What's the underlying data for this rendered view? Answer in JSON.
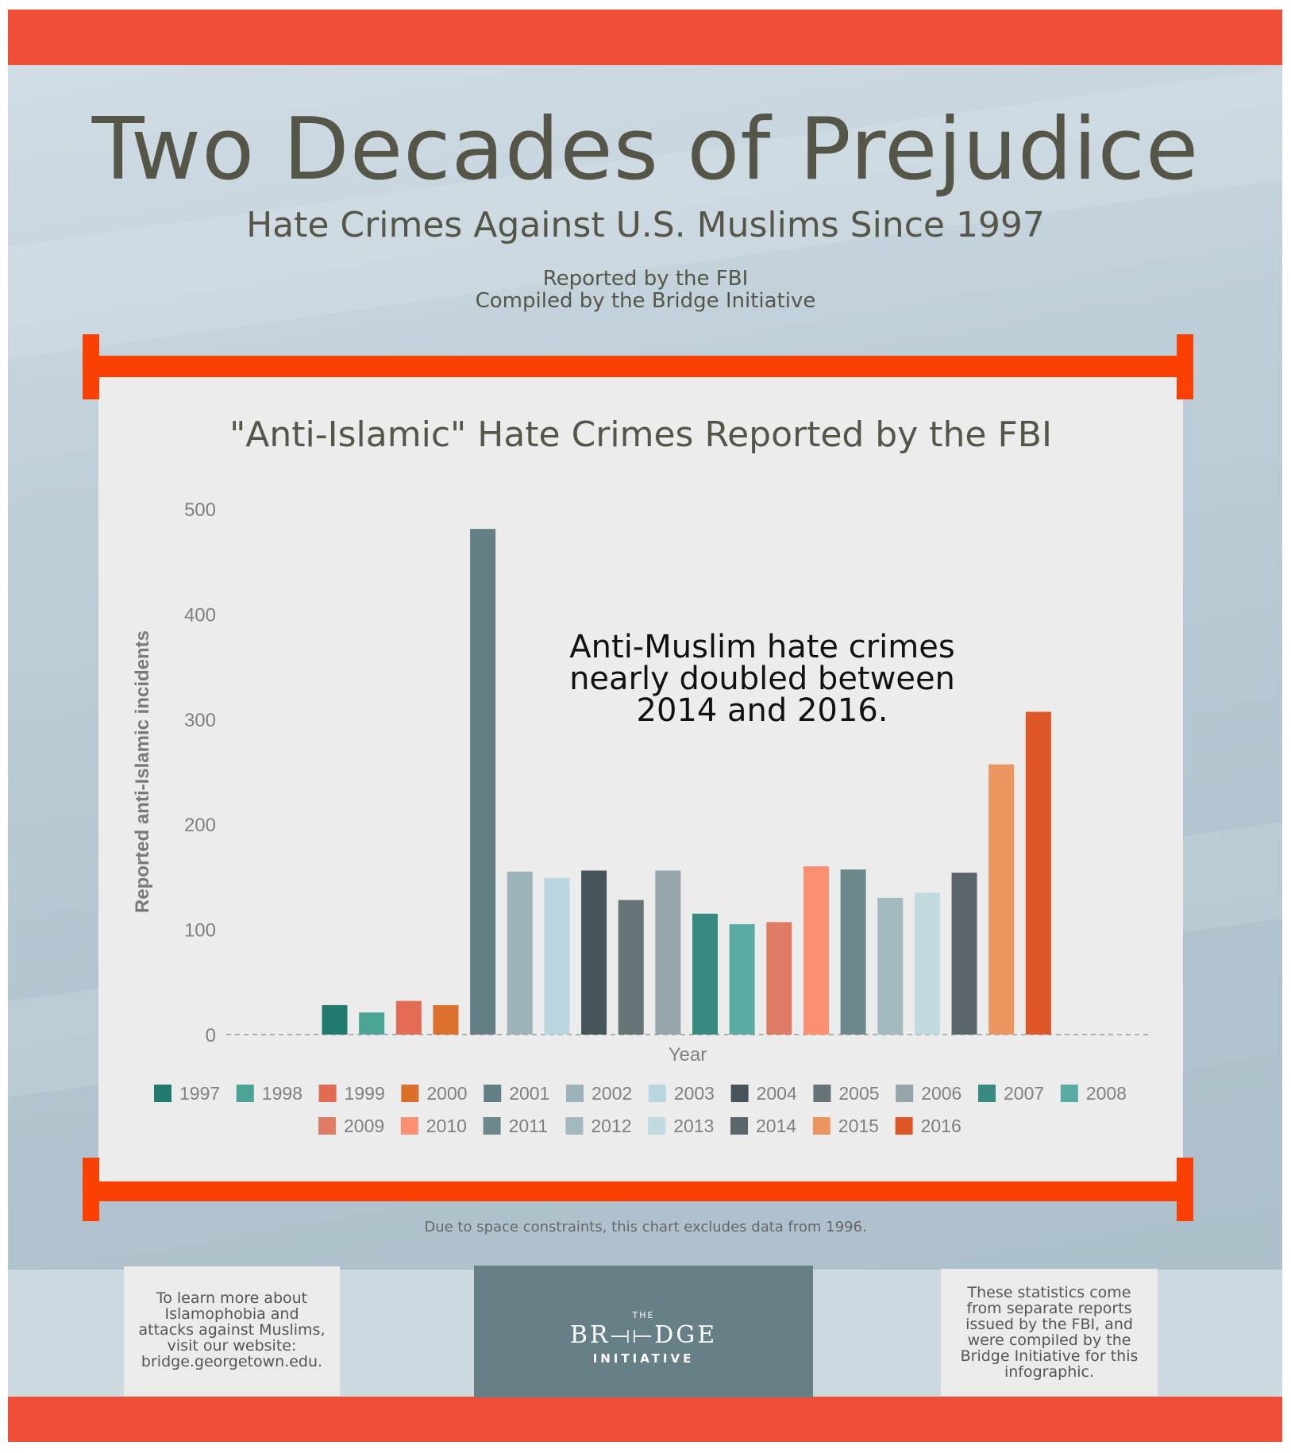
{
  "header": {
    "title": "Two Decades of Prejudice",
    "subtitle": "Hate Crimes Against U.S. Muslims Since 1997",
    "credit_line_1": "Reported by the FBI",
    "credit_line_2": "Compiled by the Bridge Initiative"
  },
  "chart_annotation": [
    "Anti-Muslim hate crimes",
    "nearly doubled between",
    "2014 and 2016."
  ],
  "footnote": "Due to space constraints, this chart excludes data from 1996.",
  "footer": {
    "left_box": [
      "To learn more about",
      "Islamophobia and",
      "attacks against Muslims,",
      "visit our website:",
      "bridge.georgetown.edu."
    ],
    "logo_top": "THE",
    "logo_name": "BR⟞⟝DGE",
    "logo_sub": "INITIATIVE",
    "right_box": [
      "These statistics come",
      "from separate reports",
      "issued by the FBI, and",
      "were compiled by the",
      "Bridge Initiative for this",
      "infographic."
    ]
  },
  "colors": {
    "accent_red": "#f04e37",
    "bracket_orange": "#fa4103"
  },
  "chart_data": {
    "type": "bar",
    "title": "\"Anti-Islamic\" Hate Crimes Reported by the FBI",
    "xlabel": "Year",
    "ylabel": "Reported anti-Islamic incidents",
    "ylim": [
      0,
      500
    ],
    "yticks": [
      "0",
      "100",
      "200",
      "300",
      "400",
      "500"
    ],
    "legend_position": "bottom",
    "categories": [
      "1997",
      "1998",
      "1999",
      "2000",
      "2001",
      "2002",
      "2003",
      "2004",
      "2005",
      "2006",
      "2007",
      "2008",
      "2009",
      "2010",
      "2011",
      "2012",
      "2013",
      "2014",
      "2015",
      "2016"
    ],
    "values": [
      28,
      21,
      32,
      28,
      481,
      155,
      149,
      156,
      128,
      156,
      115,
      105,
      107,
      160,
      157,
      130,
      135,
      154,
      257,
      307
    ],
    "colors": [
      "#217a6e",
      "#4aa597",
      "#e46b53",
      "#dd6f2c",
      "#637f85",
      "#9bb3b9",
      "#b9d6de",
      "#465359",
      "#677477",
      "#95a5a9",
      "#378a7f",
      "#5aaba3",
      "#e07c66",
      "#fc8e72",
      "#6c888b",
      "#a2b9bd",
      "#c1dade",
      "#5a656c",
      "#ec955e",
      "#dd5727"
    ]
  }
}
